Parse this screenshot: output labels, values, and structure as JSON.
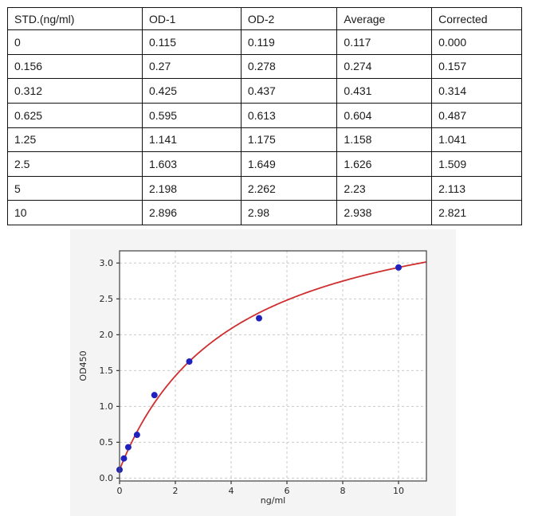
{
  "table": {
    "headers": [
      "STD.(ng/ml)",
      "OD-1",
      "OD-2",
      "Average",
      "Corrected"
    ],
    "rows": [
      [
        "0",
        "0.115",
        "0.119",
        "0.117",
        "0.000"
      ],
      [
        "0.156",
        "0.27",
        "0.278",
        "0.274",
        "0.157"
      ],
      [
        "0.312",
        "0.425",
        "0.437",
        "0.431",
        "0.314"
      ],
      [
        "0.625",
        "0.595",
        "0.613",
        "0.604",
        "0.487"
      ],
      [
        "1.25",
        "1.141",
        "1.175",
        "1.158",
        "1.041"
      ],
      [
        "2.5",
        "1.603",
        "1.649",
        "1.626",
        "1.509"
      ],
      [
        "5",
        "2.198",
        "2.262",
        "2.23",
        "2.113"
      ],
      [
        "10",
        "2.896",
        "2.98",
        "2.938",
        "2.821"
      ]
    ]
  },
  "chart_data": {
    "type": "scatter",
    "title": "",
    "xlabel": "ng/ml",
    "ylabel": "OD450",
    "x": [
      0,
      0.156,
      0.312,
      0.625,
      1.25,
      2.5,
      5,
      10
    ],
    "y": [
      0.117,
      0.274,
      0.431,
      0.604,
      1.158,
      1.626,
      2.23,
      2.938
    ],
    "fit_curve": {
      "type": "saturation_fit",
      "formula": "y = a + b*x/(c+x)",
      "a": 0.117,
      "b": 3.97,
      "c": 4.07,
      "x_start": 0,
      "x_end": 11
    },
    "xlim": [
      0,
      11
    ],
    "ylim": [
      -0.04,
      3.17
    ],
    "xticks": [
      0,
      2,
      4,
      6,
      8,
      10
    ],
    "yticks": [
      "0.0",
      "0.5",
      "1.0",
      "1.5",
      "2.0",
      "2.5",
      "3.0"
    ],
    "grid": true,
    "legend": "none",
    "point_color": "#2121bd",
    "curve_color": "#cf2e2e",
    "grid_color": "#c9c9c9",
    "spine_color": "#4d4d4d",
    "figure_bg": "#f4f4f4",
    "plot_bg": "#ffffff"
  }
}
